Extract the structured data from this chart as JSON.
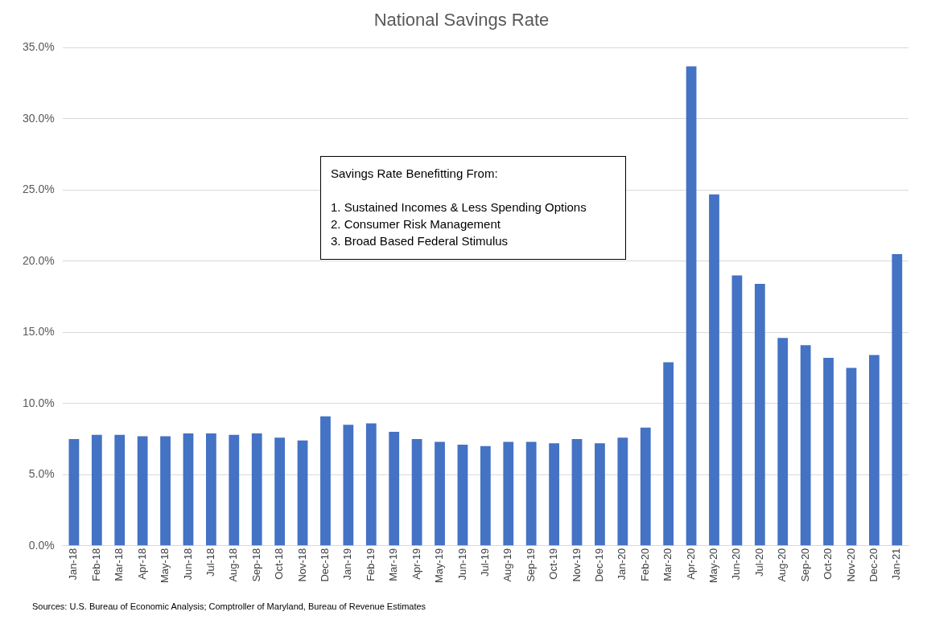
{
  "chart_data": {
    "type": "bar",
    "title": "National Savings Rate",
    "categories": [
      "Jan-18",
      "Feb-18",
      "Mar-18",
      "Apr-18",
      "May-18",
      "Jun-18",
      "Jul-18",
      "Aug-18",
      "Sep-18",
      "Oct-18",
      "Nov-18",
      "Dec-18",
      "Jan-19",
      "Feb-19",
      "Mar-19",
      "Apr-19",
      "May-19",
      "Jun-19",
      "Jul-19",
      "Aug-19",
      "Sep-19",
      "Oct-19",
      "Nov-19",
      "Dec-19",
      "Jan-20",
      "Feb-20",
      "Mar-20",
      "Apr-20",
      "May-20",
      "Jun-20",
      "Jul-20",
      "Aug-20",
      "Sep-20",
      "Oct-20",
      "Nov-20",
      "Dec-20",
      "Jan-21"
    ],
    "values": [
      7.5,
      7.8,
      7.8,
      7.7,
      7.7,
      7.9,
      7.9,
      7.8,
      7.9,
      7.6,
      7.4,
      9.1,
      8.5,
      8.6,
      8.0,
      7.5,
      7.3,
      7.1,
      7.0,
      7.3,
      7.3,
      7.2,
      7.5,
      7.2,
      7.6,
      8.3,
      12.9,
      33.7,
      24.7,
      19.0,
      18.4,
      14.6,
      14.1,
      13.2,
      12.5,
      13.4,
      20.5
    ],
    "color": "#4472c4",
    "ylim": [
      0,
      35
    ],
    "yticks": [
      {
        "value": 0,
        "label": "0.0%"
      },
      {
        "value": 5,
        "label": "5.0%"
      },
      {
        "value": 10,
        "label": "10.0%"
      },
      {
        "value": 15,
        "label": "15.0%"
      },
      {
        "value": 20,
        "label": "20.0%"
      },
      {
        "value": 25,
        "label": "25.0%"
      },
      {
        "value": 30,
        "label": "30.0%"
      },
      {
        "value": 35,
        "label": "35.0%"
      }
    ],
    "grid": "y",
    "legend": false,
    "annotations": [
      "Savings Rate Benefitting From:\n\n1.  Sustained Incomes & Less Spending Options\n2.  Consumer Risk Management\n3.  Broad Based Federal Stimulus",
      "Sources: U.S. Bureau of Economic Analysis; Comptroller of Maryland, Bureau of Revenue Estimates"
    ]
  }
}
